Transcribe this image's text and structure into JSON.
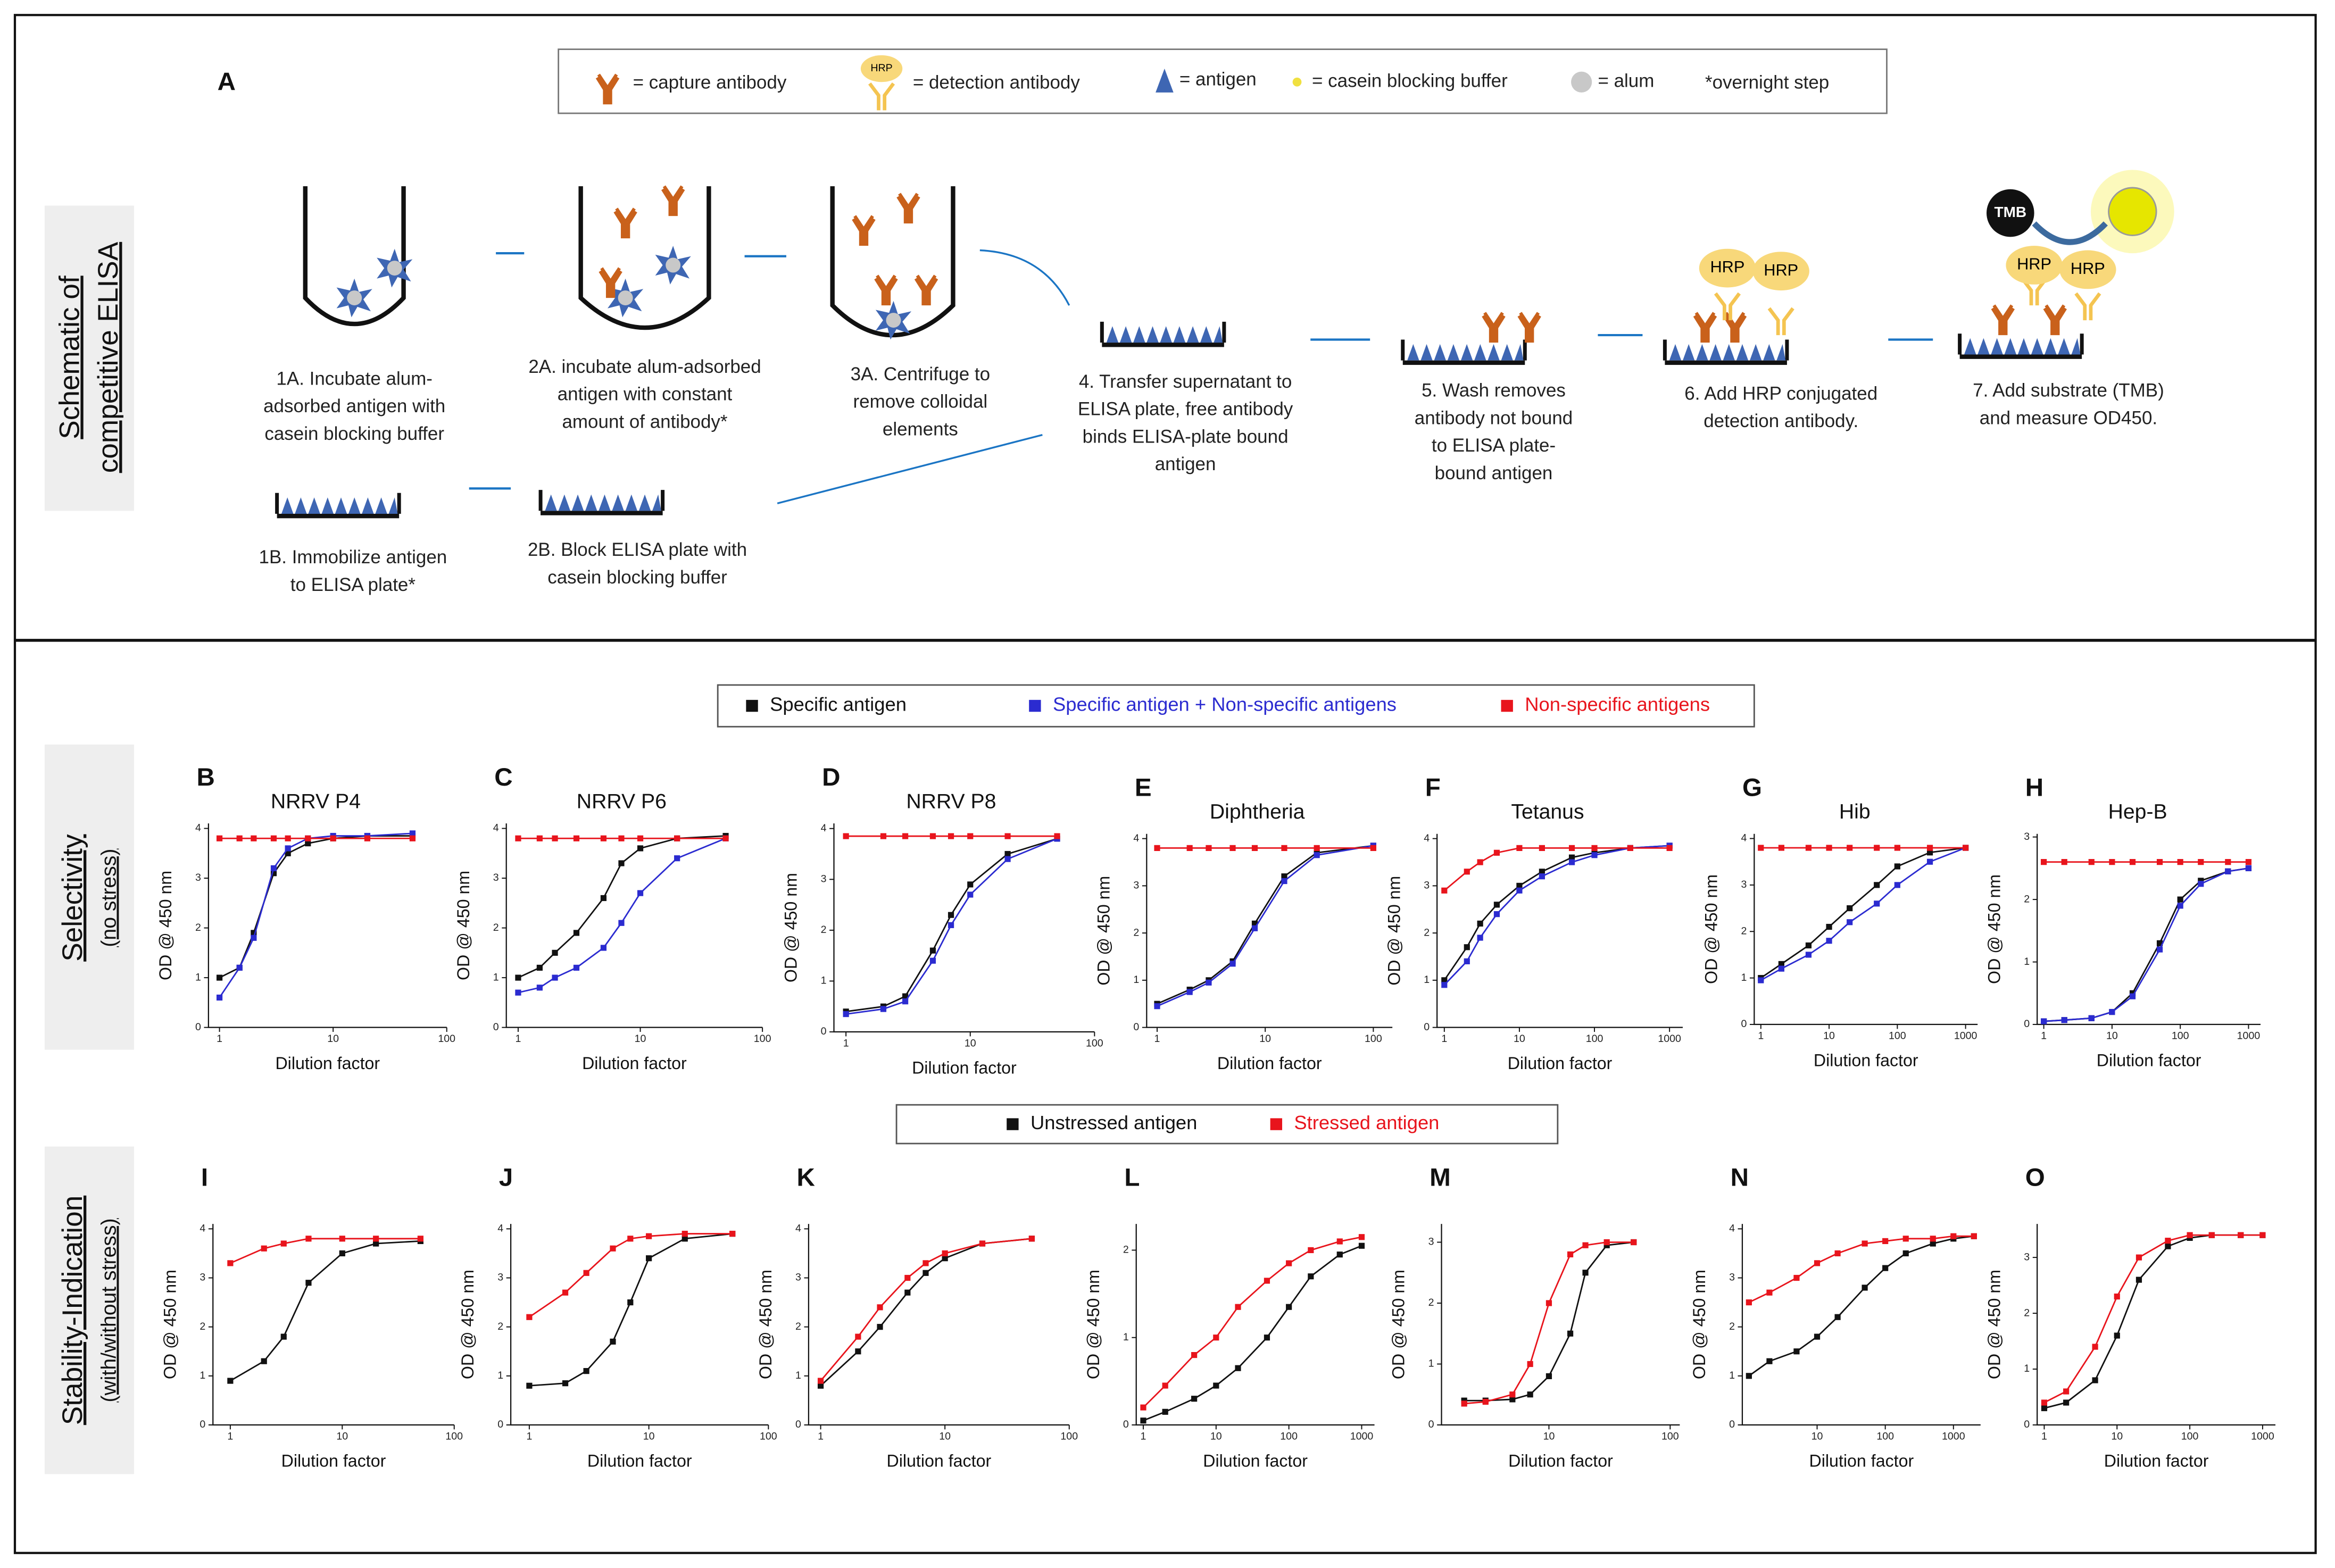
{
  "schematic": {
    "panel": "A",
    "row_label": [
      "Schematic of",
      "competitive ELISA"
    ],
    "legend": [
      "= capture antibody",
      "= detection antibody",
      "= antigen",
      "= casein blocking buffer",
      "= alum",
      "*overnight step"
    ],
    "icon_labels": {
      "hrp": "HRP",
      "tmb": "TMB"
    },
    "steps": [
      {
        "lines": [
          "1A. Incubate alum-",
          "adsorbed antigen with",
          "casein blocking buffer"
        ]
      },
      {
        "lines": [
          "2A. incubate alum-adsorbed",
          "antigen with constant",
          "amount of antibody*"
        ]
      },
      {
        "lines": [
          "3A. Centrifuge to",
          "remove colloidal",
          "elements"
        ]
      },
      {
        "lines": [
          "4. Transfer supernatant to",
          "ELISA plate, free antibody",
          "binds ELISA-plate bound",
          "antigen"
        ]
      },
      {
        "lines": [
          "5. Wash removes",
          "antibody not bound",
          "to ELISA plate-",
          "bound antigen"
        ]
      },
      {
        "lines": [
          "6. Add HRP conjugated",
          "detection antibody."
        ]
      },
      {
        "lines": [
          "7. Add substrate (TMB)",
          "and measure OD450."
        ]
      },
      {
        "lines": [
          "1B. Immobilize antigen",
          "to ELISA plate*"
        ]
      },
      {
        "lines": [
          "2B. Block ELISA plate with",
          "casein blocking buffer"
        ]
      }
    ]
  },
  "rows": [
    {
      "label": [
        "Selectivity",
        "(no stress)"
      ]
    },
    {
      "label": [
        "Stability-Indication",
        "(with/without stress)"
      ]
    }
  ],
  "chart_data": [
    {
      "type": "line",
      "panel": "B",
      "title": "NRRV P4",
      "ylabel": "OD @ 450 nm",
      "xlabel": "Dilution factor",
      "xscale": "log",
      "xlim": [
        0.8,
        100
      ],
      "xticks": [
        1,
        10,
        100
      ],
      "ylim": [
        0,
        4.1
      ],
      "yticks": [
        0,
        1,
        2,
        3,
        4
      ],
      "x": [
        1,
        1.5,
        2,
        3,
        4,
        6,
        10,
        20,
        50
      ],
      "series": [
        {
          "name": "Specific antigen",
          "color": "#111111",
          "values": [
            1.0,
            1.2,
            1.9,
            3.1,
            3.5,
            3.7,
            3.8,
            3.85,
            3.85
          ]
        },
        {
          "name": "Specific antigen + Non-specific antigens",
          "color": "#2b2bd0",
          "values": [
            0.6,
            1.2,
            1.8,
            3.2,
            3.6,
            3.8,
            3.85,
            3.85,
            3.9
          ]
        },
        {
          "name": "Non-specific antigens",
          "color": "#e8141c",
          "values": [
            3.8,
            3.8,
            3.8,
            3.8,
            3.8,
            3.8,
            3.8,
            3.8,
            3.8
          ]
        }
      ]
    },
    {
      "type": "line",
      "panel": "C",
      "title": "NRRV P6",
      "ylabel": "OD @ 450 nm",
      "xlabel": "Dilution factor",
      "xscale": "log",
      "xlim": [
        0.8,
        100
      ],
      "xticks": [
        1,
        10,
        100
      ],
      "ylim": [
        0,
        4.1
      ],
      "yticks": [
        0,
        1,
        2,
        3,
        4
      ],
      "x": [
        1,
        1.5,
        2,
        3,
        5,
        7,
        10,
        20,
        50
      ],
      "series": [
        {
          "color": "#111111",
          "values": [
            1.0,
            1.2,
            1.5,
            1.9,
            2.6,
            3.3,
            3.6,
            3.8,
            3.85
          ]
        },
        {
          "color": "#2b2bd0",
          "values": [
            0.7,
            0.8,
            1.0,
            1.2,
            1.6,
            2.1,
            2.7,
            3.4,
            3.8
          ]
        },
        {
          "color": "#e8141c",
          "values": [
            3.8,
            3.8,
            3.8,
            3.8,
            3.8,
            3.8,
            3.8,
            3.8,
            3.8
          ]
        }
      ]
    },
    {
      "type": "line",
      "panel": "D",
      "title": "NRRV P8",
      "ylabel": "OD @ 450 nm",
      "xlabel": "Dilution factor",
      "xscale": "log",
      "xlim": [
        0.8,
        100
      ],
      "xticks": [
        1,
        10,
        100
      ],
      "ylim": [
        0,
        4.1
      ],
      "yticks": [
        0,
        1,
        2,
        3,
        4
      ],
      "x": [
        1,
        2,
        3,
        5,
        7,
        10,
        20,
        50
      ],
      "series": [
        {
          "color": "#111111",
          "values": [
            0.4,
            0.5,
            0.7,
            1.6,
            2.3,
            2.9,
            3.5,
            3.8
          ]
        },
        {
          "color": "#2b2bd0",
          "values": [
            0.35,
            0.45,
            0.6,
            1.4,
            2.1,
            2.7,
            3.4,
            3.8
          ]
        },
        {
          "color": "#e8141c",
          "values": [
            3.85,
            3.85,
            3.85,
            3.85,
            3.85,
            3.85,
            3.85,
            3.85
          ]
        }
      ]
    },
    {
      "type": "line",
      "panel": "E",
      "title": "Diphtheria",
      "ylabel": "OD @ 450 nm",
      "xlabel": "Dilution factor",
      "xscale": "log",
      "xlim": [
        0.8,
        150
      ],
      "xticks": [
        1,
        10,
        100
      ],
      "ylim": [
        0,
        4.1
      ],
      "yticks": [
        0,
        1,
        2,
        3,
        4
      ],
      "x": [
        1,
        2,
        3,
        5,
        8,
        15,
        30,
        100
      ],
      "series": [
        {
          "color": "#111111",
          "values": [
            0.5,
            0.8,
            1.0,
            1.4,
            2.2,
            3.2,
            3.7,
            3.85
          ]
        },
        {
          "color": "#2b2bd0",
          "values": [
            0.45,
            0.75,
            0.95,
            1.35,
            2.1,
            3.1,
            3.65,
            3.85
          ]
        },
        {
          "color": "#e8141c",
          "values": [
            3.8,
            3.8,
            3.8,
            3.8,
            3.8,
            3.8,
            3.8,
            3.8
          ]
        }
      ]
    },
    {
      "type": "line",
      "panel": "F",
      "title": "Tetanus",
      "ylabel": "OD @ 450 nm",
      "xlabel": "Dilution factor",
      "xscale": "log",
      "xlim": [
        0.8,
        1500
      ],
      "xticks": [
        1,
        10,
        100,
        1000
      ],
      "ylim": [
        0,
        4.1
      ],
      "yticks": [
        0,
        1,
        2,
        3,
        4
      ],
      "x": [
        1,
        2,
        3,
        5,
        10,
        20,
        50,
        100,
        300,
        1000
      ],
      "series": [
        {
          "color": "#111111",
          "values": [
            1.0,
            1.7,
            2.2,
            2.6,
            3.0,
            3.3,
            3.6,
            3.7,
            3.8,
            3.85
          ]
        },
        {
          "color": "#2b2bd0",
          "values": [
            0.9,
            1.4,
            1.9,
            2.4,
            2.9,
            3.2,
            3.5,
            3.65,
            3.8,
            3.85
          ]
        },
        {
          "color": "#e8141c",
          "values": [
            2.9,
            3.3,
            3.5,
            3.7,
            3.8,
            3.8,
            3.8,
            3.8,
            3.8,
            3.8
          ]
        }
      ]
    },
    {
      "type": "line",
      "panel": "G",
      "title": "Hib",
      "ylabel": "OD @ 450 nm",
      "xlabel": "Dilution factor",
      "xscale": "log",
      "xlim": [
        0.8,
        1500
      ],
      "xticks": [
        1,
        10,
        100,
        1000
      ],
      "ylim": [
        0,
        4.1
      ],
      "yticks": [
        0,
        1,
        2,
        3,
        4
      ],
      "x": [
        1,
        2,
        5,
        10,
        20,
        50,
        100,
        300,
        1000
      ],
      "series": [
        {
          "color": "#111111",
          "values": [
            1.0,
            1.3,
            1.7,
            2.1,
            2.5,
            3.0,
            3.4,
            3.7,
            3.8
          ]
        },
        {
          "color": "#2b2bd0",
          "values": [
            0.95,
            1.2,
            1.5,
            1.8,
            2.2,
            2.6,
            3.0,
            3.5,
            3.8
          ]
        },
        {
          "color": "#e8141c",
          "values": [
            3.8,
            3.8,
            3.8,
            3.8,
            3.8,
            3.8,
            3.8,
            3.8,
            3.8
          ]
        }
      ]
    },
    {
      "type": "line",
      "panel": "H",
      "title": "Hep-B",
      "ylabel": "OD @ 450 nm",
      "xlabel": "Dilution factor",
      "xscale": "log",
      "xlim": [
        0.8,
        1500
      ],
      "xticks": [
        1,
        10,
        100,
        1000
      ],
      "ylim": [
        0,
        3.05
      ],
      "yticks": [
        0,
        1,
        2,
        3
      ],
      "x": [
        1,
        2,
        5,
        10,
        20,
        50,
        100,
        200,
        500,
        1000
      ],
      "series": [
        {
          "color": "#111111",
          "values": [
            0.05,
            0.07,
            0.1,
            0.2,
            0.5,
            1.3,
            2.0,
            2.3,
            2.45,
            2.5
          ]
        },
        {
          "color": "#2b2bd0",
          "values": [
            0.05,
            0.07,
            0.1,
            0.2,
            0.45,
            1.2,
            1.9,
            2.25,
            2.45,
            2.5
          ]
        },
        {
          "color": "#e8141c",
          "values": [
            2.6,
            2.6,
            2.6,
            2.6,
            2.6,
            2.6,
            2.6,
            2.6,
            2.6,
            2.6
          ]
        }
      ]
    },
    {
      "type": "line",
      "panel": "I",
      "ylabel": "OD @ 450 nm",
      "xlabel": "Dilution factor",
      "xscale": "log",
      "xlim": [
        0.7,
        100
      ],
      "xticks": [
        1,
        10,
        100
      ],
      "ylim": [
        0,
        4.1
      ],
      "yticks": [
        0,
        1,
        2,
        3,
        4
      ],
      "x": [
        1,
        2,
        3,
        5,
        10,
        20,
        50
      ],
      "series": [
        {
          "name": "Unstressed antigen",
          "color": "#111111",
          "values": [
            0.9,
            1.3,
            1.8,
            2.9,
            3.5,
            3.7,
            3.75
          ]
        },
        {
          "name": "Stressed antigen",
          "color": "#e8141c",
          "values": [
            3.3,
            3.6,
            3.7,
            3.8,
            3.8,
            3.8,
            3.8
          ]
        }
      ]
    },
    {
      "type": "line",
      "panel": "J",
      "ylabel": "OD @ 450 nm",
      "xlabel": "Dilution factor",
      "xscale": "log",
      "xlim": [
        0.7,
        100
      ],
      "xticks": [
        1,
        10,
        100
      ],
      "ylim": [
        0,
        4.1
      ],
      "yticks": [
        0,
        1,
        2,
        3,
        4
      ],
      "x": [
        1,
        2,
        3,
        5,
        7,
        10,
        20,
        50
      ],
      "series": [
        {
          "color": "#111111",
          "values": [
            0.8,
            0.85,
            1.1,
            1.7,
            2.5,
            3.4,
            3.8,
            3.9
          ]
        },
        {
          "color": "#e8141c",
          "values": [
            2.2,
            2.7,
            3.1,
            3.6,
            3.8,
            3.85,
            3.9,
            3.9
          ]
        }
      ]
    },
    {
      "type": "line",
      "panel": "K",
      "ylabel": "OD @ 450 nm",
      "xlabel": "Dilution factor",
      "xscale": "log",
      "xlim": [
        0.8,
        100
      ],
      "xticks": [
        1,
        10,
        100
      ],
      "ylim": [
        0,
        4.1
      ],
      "yticks": [
        0,
        1,
        2,
        3,
        4
      ],
      "x": [
        1,
        2,
        3,
        5,
        7,
        10,
        20,
        50
      ],
      "series": [
        {
          "color": "#111111",
          "values": [
            0.8,
            1.5,
            2.0,
            2.7,
            3.1,
            3.4,
            3.7,
            3.8
          ]
        },
        {
          "color": "#e8141c",
          "values": [
            0.9,
            1.8,
            2.4,
            3.0,
            3.3,
            3.5,
            3.7,
            3.8
          ]
        }
      ]
    },
    {
      "type": "line",
      "panel": "L",
      "ylabel": "OD @ 450 nm",
      "xlabel": "Dilution factor",
      "xscale": "log",
      "xlim": [
        0.8,
        1500
      ],
      "xticks": [
        1,
        10,
        100,
        1000
      ],
      "ylim": [
        0,
        2.3
      ],
      "yticks": [
        0,
        1,
        2
      ],
      "x": [
        1,
        2,
        5,
        10,
        20,
        50,
        100,
        200,
        500,
        1000
      ],
      "series": [
        {
          "color": "#111111",
          "values": [
            0.05,
            0.15,
            0.3,
            0.45,
            0.65,
            1.0,
            1.35,
            1.7,
            1.95,
            2.05
          ]
        },
        {
          "color": "#e8141c",
          "values": [
            0.2,
            0.45,
            0.8,
            1.0,
            1.35,
            1.65,
            1.85,
            2.0,
            2.1,
            2.15
          ]
        }
      ]
    },
    {
      "type": "line",
      "panel": "M",
      "ylabel": "OD @ 450 nm",
      "xlabel": "Dilution factor",
      "xscale": "log",
      "xlim": [
        1.3,
        120
      ],
      "xticks": [
        10,
        100
      ],
      "ylim": [
        0,
        3.3
      ],
      "yticks": [
        0,
        1,
        2,
        3
      ],
      "x": [
        2,
        3,
        5,
        7,
        10,
        15,
        20,
        30,
        50
      ],
      "series": [
        {
          "color": "#111111",
          "values": [
            0.4,
            0.4,
            0.42,
            0.5,
            0.8,
            1.5,
            2.5,
            2.95,
            3.0
          ]
        },
        {
          "color": "#e8141c",
          "values": [
            0.35,
            0.38,
            0.5,
            1.0,
            2.0,
            2.8,
            2.95,
            3.0,
            3.0
          ]
        }
      ]
    },
    {
      "type": "line",
      "panel": "N",
      "ylabel": "OD @ 450 nm",
      "xlabel": "Dilution factor",
      "xscale": "log",
      "xlim": [
        0.8,
        2500
      ],
      "xticks": [
        10,
        100,
        1000
      ],
      "ylim": [
        0,
        4.1
      ],
      "yticks": [
        0,
        1,
        2,
        3,
        4
      ],
      "x": [
        1,
        2,
        5,
        10,
        20,
        50,
        100,
        200,
        500,
        1000,
        2000
      ],
      "series": [
        {
          "color": "#111111",
          "values": [
            1.0,
            1.3,
            1.5,
            1.8,
            2.2,
            2.8,
            3.2,
            3.5,
            3.7,
            3.8,
            3.85
          ]
        },
        {
          "color": "#e8141c",
          "values": [
            2.5,
            2.7,
            3.0,
            3.3,
            3.5,
            3.7,
            3.75,
            3.8,
            3.8,
            3.85,
            3.85
          ]
        }
      ]
    },
    {
      "type": "line",
      "panel": "O",
      "ylabel": "OD @ 450 nm",
      "xlabel": "Dilution factor",
      "xscale": "log",
      "xlim": [
        0.8,
        1500
      ],
      "xticks": [
        1,
        10,
        100,
        1000
      ],
      "ylim": [
        0,
        3.6
      ],
      "yticks": [
        0,
        1,
        2,
        3
      ],
      "x": [
        1,
        2,
        5,
        10,
        20,
        50,
        100,
        200,
        500,
        1000
      ],
      "series": [
        {
          "color": "#111111",
          "values": [
            0.3,
            0.4,
            0.8,
            1.6,
            2.6,
            3.2,
            3.35,
            3.4,
            3.4,
            3.4
          ]
        },
        {
          "color": "#e8141c",
          "values": [
            0.4,
            0.6,
            1.4,
            2.3,
            3.0,
            3.3,
            3.4,
            3.4,
            3.4,
            3.4
          ]
        }
      ]
    }
  ]
}
